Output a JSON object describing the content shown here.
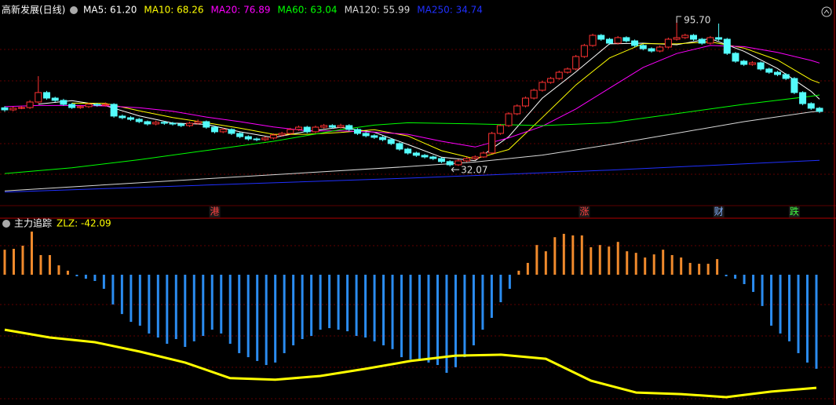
{
  "chart_data": [
    {
      "type": "candlestick",
      "title": "高新发展(日线)",
      "up_color": "#ff3232",
      "down_color": "#54fcfc",
      "ylim": [
        15.1,
        97.4
      ],
      "max_label": "95.70",
      "min_label": "32.07",
      "candles": [
        [
          57.5,
          58.2,
          55.8,
          56.6
        ],
        [
          56.6,
          58.0,
          56.0,
          57.3
        ],
        [
          57.3,
          58.3,
          56.9,
          57.6
        ],
        [
          57.6,
          60.8,
          57.0,
          60.0
        ],
        [
          60.0,
          71.2,
          59.5,
          64.1
        ],
        [
          64.1,
          64.8,
          61.0,
          61.7
        ],
        [
          61.7,
          62.3,
          60.0,
          60.7
        ],
        [
          60.7,
          61.4,
          58.4,
          59.0
        ],
        [
          59.0,
          59.6,
          57.0,
          57.6
        ],
        [
          57.6,
          58.7,
          57.0,
          58.0
        ],
        [
          58.0,
          59.7,
          57.4,
          59.0
        ],
        [
          59.0,
          59.6,
          58.0,
          58.6
        ],
        [
          58.6,
          59.8,
          58.0,
          59.0
        ],
        [
          59.0,
          59.5,
          53.2,
          53.9
        ],
        [
          53.9,
          54.6,
          52.5,
          53.2
        ],
        [
          53.2,
          53.9,
          51.8,
          52.5
        ],
        [
          52.5,
          53.1,
          50.8,
          51.5
        ],
        [
          51.5,
          52.0,
          49.8,
          50.5
        ],
        [
          50.5,
          51.9,
          49.9,
          51.2
        ],
        [
          51.2,
          51.8,
          50.1,
          50.8
        ],
        [
          50.8,
          51.4,
          49.8,
          50.5
        ],
        [
          50.5,
          51.0,
          49.1,
          49.8
        ],
        [
          49.8,
          51.5,
          49.2,
          50.8
        ],
        [
          50.8,
          52.4,
          50.2,
          51.5
        ],
        [
          51.5,
          52.0,
          48.4,
          49.1
        ],
        [
          49.1,
          49.7,
          46.4,
          47.1
        ],
        [
          47.1,
          48.8,
          46.5,
          48.1
        ],
        [
          48.1,
          48.6,
          45.7,
          46.4
        ],
        [
          46.4,
          47.0,
          44.3,
          45.0
        ],
        [
          45.0,
          45.6,
          43.3,
          44.0
        ],
        [
          44.0,
          44.6,
          43.0,
          43.7
        ],
        [
          43.7,
          45.1,
          43.1,
          44.4
        ],
        [
          44.4,
          46.4,
          43.8,
          45.7
        ],
        [
          45.7,
          47.1,
          45.1,
          46.4
        ],
        [
          46.4,
          48.8,
          45.8,
          48.1
        ],
        [
          48.1,
          49.8,
          47.5,
          49.1
        ],
        [
          49.1,
          49.7,
          46.4,
          47.1
        ],
        [
          47.1,
          49.8,
          46.5,
          49.1
        ],
        [
          49.1,
          50.5,
          48.5,
          49.8
        ],
        [
          49.8,
          50.4,
          48.4,
          49.1
        ],
        [
          49.1,
          50.6,
          48.5,
          49.8
        ],
        [
          49.8,
          50.4,
          47.4,
          48.1
        ],
        [
          48.1,
          48.7,
          45.7,
          46.4
        ],
        [
          46.4,
          47.0,
          44.7,
          45.4
        ],
        [
          45.4,
          46.0,
          44.0,
          44.7
        ],
        [
          44.7,
          45.3,
          43.0,
          43.7
        ],
        [
          43.7,
          44.3,
          41.3,
          42.0
        ],
        [
          42.0,
          42.6,
          38.9,
          39.6
        ],
        [
          39.6,
          40.2,
          37.2,
          37.9
        ],
        [
          37.9,
          38.5,
          36.2,
          36.9
        ],
        [
          36.9,
          37.5,
          35.5,
          36.2
        ],
        [
          36.2,
          36.8,
          34.8,
          35.5
        ],
        [
          35.5,
          36.1,
          33.5,
          34.2
        ],
        [
          34.2,
          34.8,
          32.07,
          32.8
        ],
        [
          32.8,
          35.2,
          32.3,
          34.5
        ],
        [
          34.5,
          36.2,
          34.0,
          35.5
        ],
        [
          35.5,
          36.9,
          35.0,
          36.2
        ],
        [
          36.2,
          38.6,
          35.8,
          37.9
        ],
        [
          37.9,
          47.1,
          37.5,
          46.4
        ],
        [
          46.4,
          50.5,
          45.8,
          49.8
        ],
        [
          49.8,
          55.6,
          49.2,
          54.9
        ],
        [
          54.9,
          59.0,
          54.3,
          58.3
        ],
        [
          58.3,
          62.4,
          57.7,
          61.7
        ],
        [
          61.7,
          65.8,
          61.1,
          65.1
        ],
        [
          65.1,
          69.2,
          64.5,
          68.5
        ],
        [
          68.5,
          70.9,
          67.9,
          70.2
        ],
        [
          70.2,
          73.6,
          69.6,
          72.9
        ],
        [
          72.9,
          75.0,
          72.3,
          74.3
        ],
        [
          74.3,
          80.4,
          73.7,
          79.7
        ],
        [
          79.7,
          85.2,
          79.1,
          84.5
        ],
        [
          84.5,
          89.6,
          83.9,
          88.9
        ],
        [
          88.9,
          89.5,
          86.5,
          87.2
        ],
        [
          87.2,
          87.8,
          84.8,
          85.5
        ],
        [
          85.5,
          88.6,
          84.9,
          87.9
        ],
        [
          87.9,
          88.5,
          85.8,
          86.5
        ],
        [
          86.5,
          87.1,
          83.8,
          84.5
        ],
        [
          84.5,
          85.1,
          82.4,
          83.1
        ],
        [
          83.1,
          83.7,
          81.4,
          82.1
        ],
        [
          82.1,
          84.5,
          81.5,
          83.8
        ],
        [
          83.8,
          87.9,
          83.2,
          87.2
        ],
        [
          87.2,
          95.7,
          86.6,
          87.9
        ],
        [
          87.9,
          89.6,
          87.3,
          88.9
        ],
        [
          88.9,
          89.5,
          86.5,
          87.2
        ],
        [
          87.2,
          87.8,
          84.8,
          85.5
        ],
        [
          85.5,
          88.6,
          84.9,
          87.9
        ],
        [
          87.9,
          94.0,
          86.5,
          87.2
        ],
        [
          87.2,
          87.8,
          80.4,
          81.1
        ],
        [
          81.1,
          81.7,
          77.0,
          77.7
        ],
        [
          77.7,
          78.3,
          75.6,
          76.3
        ],
        [
          76.3,
          77.7,
          75.7,
          77.0
        ],
        [
          77.0,
          77.6,
          73.6,
          74.3
        ],
        [
          74.3,
          74.9,
          72.2,
          72.9
        ],
        [
          72.9,
          73.5,
          71.2,
          71.9
        ],
        [
          71.9,
          72.5,
          69.5,
          70.2
        ],
        [
          70.2,
          70.8,
          63.4,
          64.1
        ],
        [
          64.1,
          64.7,
          58.6,
          59.3
        ],
        [
          59.3,
          59.9,
          56.6,
          57.3
        ],
        [
          57.3,
          57.9,
          55.2,
          55.9
        ]
      ],
      "event_labels": [
        null,
        null,
        null,
        null,
        null,
        null,
        null,
        null,
        null,
        null,
        null,
        null,
        null,
        null,
        null,
        null,
        null,
        null,
        null,
        null,
        null,
        null,
        null,
        null,
        null,
        {
          "label": "港",
          "color": "#ff4040"
        },
        null,
        null,
        null,
        null,
        null,
        null,
        null,
        null,
        null,
        null,
        null,
        null,
        null,
        null,
        null,
        null,
        null,
        null,
        null,
        null,
        null,
        null,
        null,
        null,
        null,
        null,
        null,
        null,
        null,
        null,
        null,
        null,
        null,
        null,
        null,
        null,
        null,
        null,
        null,
        null,
        null,
        null,
        null,
        {
          "label": "涨",
          "color": "#ff4040"
        },
        null,
        null,
        null,
        null,
        null,
        null,
        null,
        null,
        null,
        null,
        null,
        null,
        null,
        null,
        null,
        {
          "label": "财",
          "color": "#80b0ff"
        },
        null,
        null,
        null,
        null,
        null,
        null,
        null,
        null,
        {
          "label": "跌",
          "color": "#40ff40"
        },
        null,
        null,
        null
      ],
      "series": [
        {
          "name": "MA5: 61.20",
          "color": "#ffffff",
          "x": [
            4,
            8,
            12,
            16,
            20,
            24,
            28,
            32,
            36,
            40,
            44,
            48,
            52,
            56,
            60,
            64,
            68,
            72,
            76,
            80,
            84,
            88,
            92,
            96,
            97
          ],
          "values": [
            59.1,
            60.6,
            58.4,
            54.0,
            50.9,
            50.3,
            47.1,
            44.6,
            47.3,
            49.0,
            46.9,
            41.6,
            36.1,
            34.6,
            45.0,
            61.7,
            73.1,
            85.2,
            85.5,
            84.8,
            87.5,
            82.0,
            74.5,
            64.6,
            61.2
          ]
        },
        {
          "name": "MA10: 68.26",
          "color": "#ffff00",
          "x": [
            8,
            12,
            16,
            20,
            24,
            28,
            32,
            36,
            40,
            44,
            48,
            52,
            56,
            60,
            64,
            68,
            72,
            76,
            80,
            84,
            88,
            92,
            96,
            97
          ],
          "values": [
            59.5,
            59.4,
            56.2,
            53.3,
            51.0,
            48.7,
            46.0,
            46.0,
            46.8,
            48.0,
            45.3,
            38.9,
            35.4,
            39.4,
            53.3,
            67.4,
            79.1,
            85.3,
            85.2,
            86.1,
            83.4,
            78.2,
            69.6,
            68.26
          ]
        },
        {
          "name": "MA20: 76.89",
          "color": "#ff00ff",
          "x": [
            0,
            4,
            8,
            12,
            16,
            20,
            24,
            28,
            32,
            36,
            40,
            44,
            48,
            52,
            56,
            60,
            64,
            68,
            72,
            76,
            80,
            84,
            88,
            92,
            96,
            97
          ],
          "values": [
            58,
            58.5,
            58.5,
            58.3,
            57.5,
            56,
            53.5,
            51.5,
            49.2,
            47.5,
            47.5,
            47,
            46,
            43,
            40.5,
            44.5,
            49.5,
            57,
            66,
            75,
            81,
            84.5,
            84,
            81.5,
            78,
            76.89
          ]
        },
        {
          "name": "MA60: 63.04",
          "color": "#00ff00",
          "x": [
            0,
            8,
            16,
            24,
            32,
            40,
            44,
            48,
            56,
            64,
            72,
            80,
            88,
            96,
            97
          ],
          "values": [
            29,
            31.5,
            35,
            39,
            43,
            48,
            50,
            51,
            50.5,
            49.8,
            51,
            55,
            59,
            62.5,
            63.04
          ]
        },
        {
          "name": "MA120: 55.99",
          "color": "#d8d8d8",
          "x": [
            0,
            16,
            32,
            48,
            56,
            64,
            72,
            80,
            88,
            96,
            97
          ],
          "values": [
            21.5,
            25,
            28.5,
            32,
            34,
            37,
            41.5,
            46.5,
            51.5,
            55.7,
            55.99
          ]
        },
        {
          "name": "MA250: 34.74",
          "color": "#2030ff",
          "x": [
            0,
            24,
            48,
            72,
            97
          ],
          "values": [
            21,
            24,
            27,
            30.5,
            34.74
          ]
        }
      ]
    },
    {
      "type": "bar",
      "title": "主力追踪",
      "ylim": [
        -58.3,
        25.3
      ],
      "series": [
        {
          "type": "bar",
          "name": "ZLZ: -42.09",
          "color": "#ffff00",
          "positive_color": "#f08a2c",
          "negative_color": "#2b8cf0",
          "values": [
            11.2,
            11.6,
            13.0,
            19.3,
            8.8,
            8.8,
            4.2,
            1.8,
            -0.7,
            -1.8,
            -2.8,
            -6.3,
            -13.3,
            -17.6,
            -21.1,
            -22.8,
            -26.3,
            -28.1,
            -30.9,
            -28.8,
            -32.3,
            -29.8,
            -27.4,
            -24.6,
            -26.3,
            -30.9,
            -35.1,
            -36.9,
            -38.6,
            -40.4,
            -39.3,
            -35.1,
            -31.6,
            -28.8,
            -27.4,
            -24.6,
            -23.9,
            -24.6,
            -25.3,
            -27.4,
            -28.1,
            -29.8,
            -31.6,
            -33.3,
            -36.9,
            -37.9,
            -38.6,
            -39.3,
            -40.4,
            -43.9,
            -41.4,
            -36.9,
            -31.6,
            -24.6,
            -19.3,
            -12.3,
            -6.3,
            1.8,
            5.3,
            13.3,
            10.5,
            16.8,
            18.3,
            17.6,
            17.6,
            12.3,
            13.3,
            12.6,
            14.7,
            10.5,
            9.8,
            7.7,
            9.1,
            11.2,
            8.8,
            7.7,
            5.3,
            4.9,
            4.9,
            7.0,
            -0.7,
            -1.8,
            -4.2,
            -7.7,
            -14.0,
            -22.8,
            -26.3,
            -29.8,
            -35.1,
            -39.3,
            -42.09
          ]
        },
        {
          "type": "line",
          "color": "#ffff00",
          "x": [
            0,
            5,
            10,
            15,
            20,
            25,
            30,
            35,
            40,
            45,
            50,
            55,
            60,
            65,
            70,
            75,
            80,
            85,
            90
          ],
          "values": [
            -24.6,
            -28.1,
            -30.2,
            -34.4,
            -39.3,
            -46.3,
            -47.0,
            -45.3,
            -42.1,
            -38.6,
            -36.2,
            -35.8,
            -37.6,
            -47.4,
            -52.7,
            -53.4,
            -54.8,
            -52.3,
            -50.6
          ]
        }
      ]
    }
  ]
}
